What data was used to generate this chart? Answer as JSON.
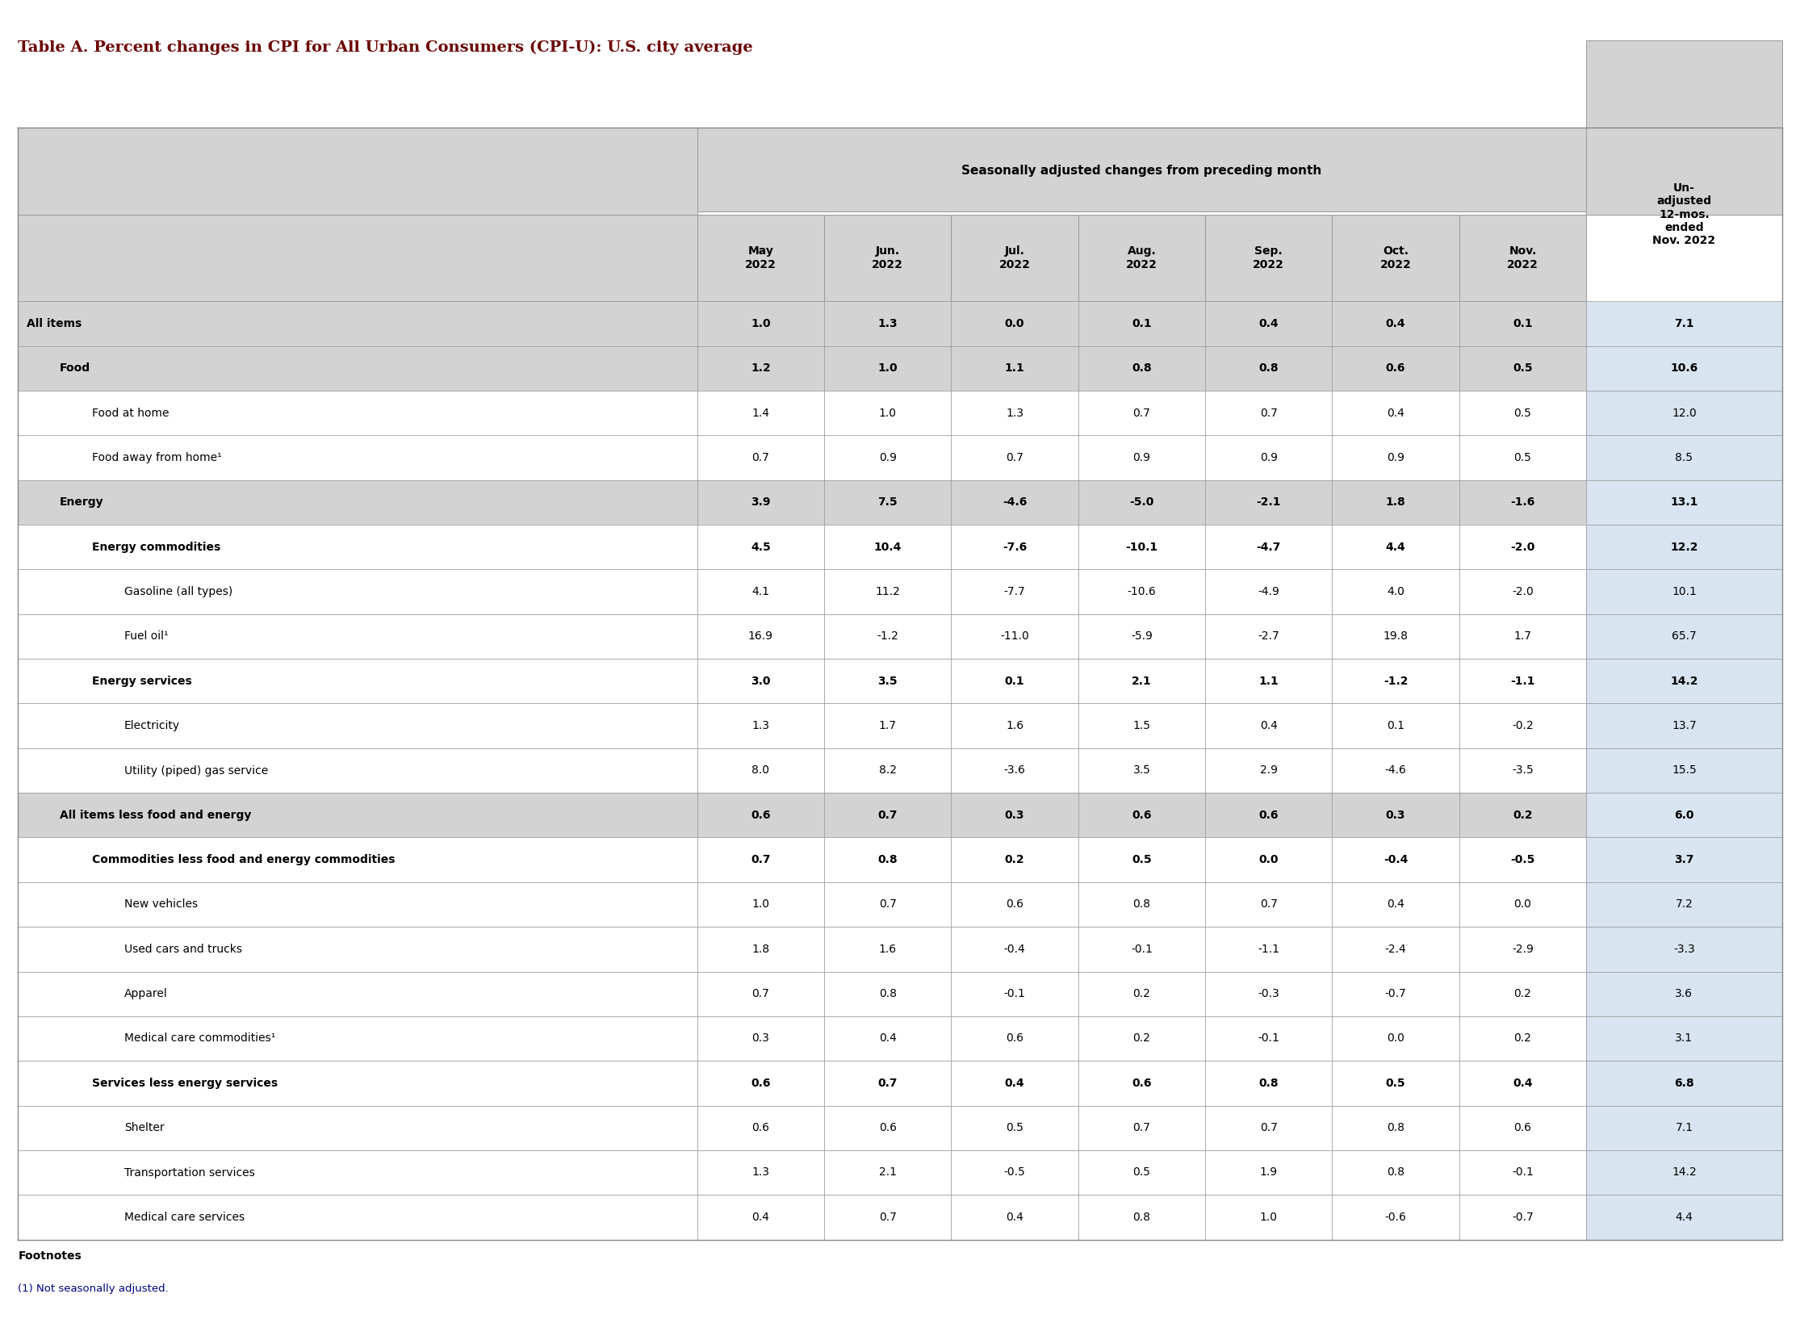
{
  "title": "Table A. Percent changes in CPI for All Urban Consumers (CPI-U): U.S. city average",
  "title_color": "#6B0000",
  "header_group": "Seasonally adjusted changes from preceding month",
  "col_headers": [
    "May\n2022",
    "Jun.\n2022",
    "Jul.\n2022",
    "Aug.\n2022",
    "Sep.\n2022",
    "Oct.\n2022",
    "Nov.\n2022",
    "Un-\nadjusted\n12-mos.\nended\nNov. 2022"
  ],
  "rows": [
    {
      "label": "All items",
      "indent": 0,
      "bold": true,
      "values": [
        1.0,
        1.3,
        0.0,
        0.1,
        0.4,
        0.4,
        0.1,
        7.1
      ]
    },
    {
      "label": "Food",
      "indent": 1,
      "bold": true,
      "values": [
        1.2,
        1.0,
        1.1,
        0.8,
        0.8,
        0.6,
        0.5,
        10.6
      ]
    },
    {
      "label": "Food at home",
      "indent": 2,
      "bold": false,
      "values": [
        1.4,
        1.0,
        1.3,
        0.7,
        0.7,
        0.4,
        0.5,
        12.0
      ]
    },
    {
      "label": "Food away from home¹",
      "indent": 2,
      "bold": false,
      "values": [
        0.7,
        0.9,
        0.7,
        0.9,
        0.9,
        0.9,
        0.5,
        8.5
      ]
    },
    {
      "label": "Energy",
      "indent": 1,
      "bold": true,
      "values": [
        3.9,
        7.5,
        -4.6,
        -5.0,
        -2.1,
        1.8,
        -1.6,
        13.1
      ]
    },
    {
      "label": "Energy commodities",
      "indent": 2,
      "bold": true,
      "values": [
        4.5,
        10.4,
        -7.6,
        -10.1,
        -4.7,
        4.4,
        -2.0,
        12.2
      ]
    },
    {
      "label": "Gasoline (all types)",
      "indent": 3,
      "bold": false,
      "values": [
        4.1,
        11.2,
        -7.7,
        -10.6,
        -4.9,
        4.0,
        -2.0,
        10.1
      ]
    },
    {
      "label": "Fuel oil¹",
      "indent": 3,
      "bold": false,
      "values": [
        16.9,
        -1.2,
        -11.0,
        -5.9,
        -2.7,
        19.8,
        1.7,
        65.7
      ]
    },
    {
      "label": "Energy services",
      "indent": 2,
      "bold": true,
      "values": [
        3.0,
        3.5,
        0.1,
        2.1,
        1.1,
        -1.2,
        -1.1,
        14.2
      ]
    },
    {
      "label": "Electricity",
      "indent": 3,
      "bold": false,
      "values": [
        1.3,
        1.7,
        1.6,
        1.5,
        0.4,
        0.1,
        -0.2,
        13.7
      ]
    },
    {
      "label": "Utility (piped) gas service",
      "indent": 3,
      "bold": false,
      "values": [
        8.0,
        8.2,
        -3.6,
        3.5,
        2.9,
        -4.6,
        -3.5,
        15.5
      ]
    },
    {
      "label": "All items less food and energy",
      "indent": 1,
      "bold": true,
      "values": [
        0.6,
        0.7,
        0.3,
        0.6,
        0.6,
        0.3,
        0.2,
        6.0
      ]
    },
    {
      "label": "Commodities less food and energy commodities",
      "indent": 2,
      "bold": true,
      "values": [
        0.7,
        0.8,
        0.2,
        0.5,
        0.0,
        -0.4,
        -0.5,
        3.7
      ]
    },
    {
      "label": "New vehicles",
      "indent": 3,
      "bold": false,
      "values": [
        1.0,
        0.7,
        0.6,
        0.8,
        0.7,
        0.4,
        0.0,
        7.2
      ]
    },
    {
      "label": "Used cars and trucks",
      "indent": 3,
      "bold": false,
      "values": [
        1.8,
        1.6,
        -0.4,
        -0.1,
        -1.1,
        -2.4,
        -2.9,
        -3.3
      ]
    },
    {
      "label": "Apparel",
      "indent": 3,
      "bold": false,
      "values": [
        0.7,
        0.8,
        -0.1,
        0.2,
        -0.3,
        -0.7,
        0.2,
        3.6
      ]
    },
    {
      "label": "Medical care commodities¹",
      "indent": 3,
      "bold": false,
      "values": [
        0.3,
        0.4,
        0.6,
        0.2,
        -0.1,
        0.0,
        0.2,
        3.1
      ]
    },
    {
      "label": "Services less energy services",
      "indent": 2,
      "bold": true,
      "values": [
        0.6,
        0.7,
        0.4,
        0.6,
        0.8,
        0.5,
        0.4,
        6.8
      ]
    },
    {
      "label": "Shelter",
      "indent": 3,
      "bold": false,
      "values": [
        0.6,
        0.6,
        0.5,
        0.7,
        0.7,
        0.8,
        0.6,
        7.1
      ]
    },
    {
      "label": "Transportation services",
      "indent": 3,
      "bold": false,
      "values": [
        1.3,
        2.1,
        -0.5,
        0.5,
        1.9,
        0.8,
        -0.1,
        14.2
      ]
    },
    {
      "label": "Medical care services",
      "indent": 3,
      "bold": false,
      "values": [
        0.4,
        0.7,
        0.4,
        0.8,
        1.0,
        -0.6,
        -0.7,
        4.4
      ]
    }
  ],
  "footnote_title": "Footnotes",
  "footnote_text": "(1) Not seasonally adjusted.",
  "bg_color_header": "#D3D3D3",
  "bg_color_even": "#FFFFFF",
  "bg_color_odd": "#E8E8E8",
  "border_color": "#999999",
  "text_color": "#000000",
  "label_indent_per_level": 12
}
